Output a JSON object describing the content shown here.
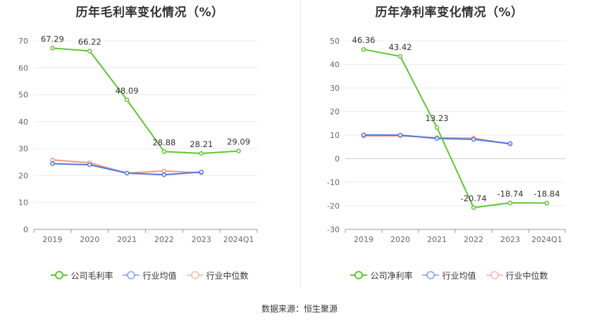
{
  "source_label": "数据来源：恒生聚源",
  "chart_data": [
    {
      "type": "line",
      "title": "历年毛利率变化情况（%）",
      "categories": [
        "2019",
        "2020",
        "2021",
        "2022",
        "2023",
        "2024Q1"
      ],
      "ylim": [
        0,
        70
      ],
      "yticks": [
        0,
        10,
        20,
        30,
        40,
        50,
        60,
        70
      ],
      "grid": true,
      "legend_position": "bottom",
      "series": [
        {
          "name": "公司毛利率",
          "color": "#5ec72f",
          "labeled": true,
          "values": [
            67.29,
            66.22,
            48.09,
            28.88,
            28.21,
            29.09
          ],
          "labels": [
            "67.29",
            "66.22",
            "48.09",
            "28.88",
            "28.21",
            "29.09"
          ]
        },
        {
          "name": "行业均值",
          "color": "#4f78e0",
          "labeled": false,
          "values": [
            24.4,
            24.0,
            20.9,
            20.3,
            21.3,
            null
          ]
        },
        {
          "name": "行业中位数",
          "color": "#f09a84",
          "labeled": false,
          "values": [
            25.8,
            24.7,
            20.9,
            21.7,
            21.0,
            null
          ]
        }
      ]
    },
    {
      "type": "line",
      "title": "历年净利率变化情况（%）",
      "categories": [
        "2019",
        "2020",
        "2021",
        "2022",
        "2023",
        "2024Q1"
      ],
      "ylim": [
        -30,
        50
      ],
      "yticks": [
        -30,
        -20,
        -10,
        0,
        10,
        20,
        30,
        40,
        50
      ],
      "grid": true,
      "legend_position": "bottom",
      "series": [
        {
          "name": "公司净利率",
          "color": "#5ec72f",
          "labeled": true,
          "values": [
            46.36,
            43.42,
            13.23,
            -20.74,
            -18.74,
            -18.84
          ],
          "labels": [
            "46.36",
            "43.42",
            "13.23",
            "-20.74",
            "-18.74",
            "-18.84"
          ]
        },
        {
          "name": "行业均值",
          "color": "#4f78e0",
          "labeled": false,
          "values": [
            10.1,
            10.0,
            8.6,
            8.2,
            6.4,
            null
          ]
        },
        {
          "name": "行业中位数",
          "color": "#f09a84",
          "labeled": false,
          "values": [
            9.6,
            9.7,
            8.9,
            8.7,
            6.2,
            null
          ]
        }
      ]
    }
  ]
}
